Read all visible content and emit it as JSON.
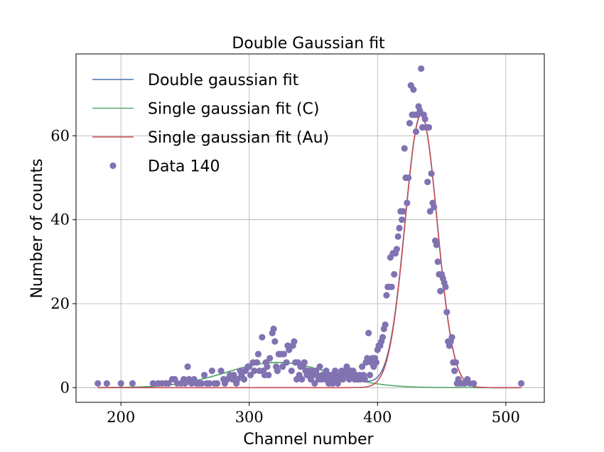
{
  "chart_data": {
    "type": "scatter",
    "title": "Double Gaussian fit",
    "xlabel": "Channel number",
    "ylabel": "Number of counts",
    "xlim": [
      165,
      530
    ],
    "ylim": [
      -3.5,
      79.5
    ],
    "xticks": [
      200,
      300,
      400,
      500
    ],
    "yticks": [
      0,
      20,
      40,
      60
    ],
    "grid": true,
    "legend_position": "top-left",
    "colors": {
      "double": "#4c72b0",
      "carbon": "#55a868",
      "gold": "#c44e52",
      "data": "#8172b2"
    },
    "fits": {
      "carbon": {
        "amplitude": 6,
        "mean": 322,
        "sigma": 40
      },
      "gold": {
        "amplitude": 65,
        "mean": 434,
        "sigma": 12.5
      },
      "x_range": [
        182,
        512
      ]
    },
    "series": [
      {
        "name": "Double gaussian fit",
        "kind": "line",
        "key": "double"
      },
      {
        "name": "Single gaussian fit (C)",
        "kind": "line",
        "key": "carbon"
      },
      {
        "name": "Single gaussian fit (Au)",
        "kind": "line",
        "key": "gold"
      },
      {
        "name": "Data 140",
        "kind": "scatter",
        "key": "data",
        "points": [
          [
            182,
            1
          ],
          [
            189,
            1
          ],
          [
            200,
            1
          ],
          [
            209,
            1
          ],
          [
            225,
            1
          ],
          [
            229,
            1
          ],
          [
            232,
            1
          ],
          [
            235,
            1
          ],
          [
            237,
            1
          ],
          [
            240,
            2
          ],
          [
            242,
            2
          ],
          [
            244,
            1
          ],
          [
            247,
            1
          ],
          [
            249,
            2
          ],
          [
            250,
            1
          ],
          [
            252,
            5
          ],
          [
            253,
            2
          ],
          [
            255,
            1
          ],
          [
            257,
            2
          ],
          [
            259,
            1
          ],
          [
            261,
            1
          ],
          [
            263,
            1
          ],
          [
            265,
            3
          ],
          [
            267,
            1
          ],
          [
            269,
            1
          ],
          [
            271,
            4
          ],
          [
            273,
            1
          ],
          [
            275,
            1
          ],
          [
            278,
            4
          ],
          [
            280,
            2
          ],
          [
            281,
            1
          ],
          [
            283,
            2
          ],
          [
            285,
            3
          ],
          [
            287,
            2
          ],
          [
            288,
            3
          ],
          [
            290,
            1
          ],
          [
            291,
            2
          ],
          [
            293,
            4
          ],
          [
            294,
            3
          ],
          [
            296,
            2
          ],
          [
            297,
            4
          ],
          [
            299,
            5
          ],
          [
            300,
            5
          ],
          [
            301,
            3
          ],
          [
            303,
            6
          ],
          [
            304,
            4
          ],
          [
            306,
            6
          ],
          [
            307,
            8
          ],
          [
            308,
            4
          ],
          [
            310,
            12
          ],
          [
            311,
            4
          ],
          [
            312,
            3
          ],
          [
            313,
            6
          ],
          [
            314,
            5
          ],
          [
            315,
            3
          ],
          [
            316,
            7
          ],
          [
            318,
            13
          ],
          [
            319,
            14
          ],
          [
            320,
            11
          ],
          [
            321,
            5
          ],
          [
            322,
            4
          ],
          [
            323,
            8
          ],
          [
            325,
            8
          ],
          [
            326,
            5
          ],
          [
            327,
            8
          ],
          [
            329,
            6
          ],
          [
            330,
            10
          ],
          [
            331,
            9
          ],
          [
            333,
            4
          ],
          [
            334,
            10
          ],
          [
            335,
            11
          ],
          [
            336,
            6
          ],
          [
            337,
            2
          ],
          [
            338,
            6
          ],
          [
            339,
            3
          ],
          [
            340,
            5
          ],
          [
            341,
            2
          ],
          [
            342,
            5
          ],
          [
            343,
            6
          ],
          [
            344,
            4
          ],
          [
            345,
            3
          ],
          [
            346,
            4
          ],
          [
            347,
            3
          ],
          [
            348,
            2
          ],
          [
            349,
            4
          ],
          [
            350,
            3
          ],
          [
            351,
            1
          ],
          [
            352,
            4
          ],
          [
            353,
            3
          ],
          [
            354,
            2
          ],
          [
            355,
            5
          ],
          [
            356,
            2
          ],
          [
            357,
            3
          ],
          [
            358,
            3
          ],
          [
            359,
            2
          ],
          [
            360,
            4
          ],
          [
            361,
            3
          ],
          [
            362,
            1
          ],
          [
            363,
            2
          ],
          [
            364,
            3
          ],
          [
            365,
            1
          ],
          [
            366,
            2
          ],
          [
            367,
            4
          ],
          [
            368,
            3
          ],
          [
            369,
            1
          ],
          [
            370,
            2
          ],
          [
            371,
            3
          ],
          [
            372,
            4
          ],
          [
            373,
            2
          ],
          [
            374,
            3
          ],
          [
            375,
            4
          ],
          [
            376,
            5
          ],
          [
            377,
            3
          ],
          [
            378,
            2
          ],
          [
            379,
            4
          ],
          [
            380,
            3
          ],
          [
            381,
            4
          ],
          [
            382,
            2
          ],
          [
            383,
            3
          ],
          [
            384,
            2
          ],
          [
            385,
            2
          ],
          [
            386,
            3
          ],
          [
            387,
            2
          ],
          [
            388,
            5
          ],
          [
            389,
            3
          ],
          [
            390,
            2
          ],
          [
            391,
            6
          ],
          [
            392,
            7
          ],
          [
            393,
            13
          ],
          [
            394,
            3
          ],
          [
            395,
            6
          ],
          [
            396,
            7
          ],
          [
            397,
            5
          ],
          [
            398,
            7
          ],
          [
            399,
            6
          ],
          [
            400,
            9
          ],
          [
            401,
            10
          ],
          [
            402,
            10
          ],
          [
            403,
            11
          ],
          [
            404,
            12
          ],
          [
            405,
            14
          ],
          [
            406,
            15
          ],
          [
            407,
            22
          ],
          [
            408,
            24
          ],
          [
            409,
            24
          ],
          [
            410,
            31
          ],
          [
            411,
            24
          ],
          [
            412,
            32
          ],
          [
            413,
            27
          ],
          [
            414,
            32
          ],
          [
            415,
            33
          ],
          [
            416,
            36
          ],
          [
            417,
            38
          ],
          [
            418,
            42
          ],
          [
            419,
            40
          ],
          [
            420,
            42
          ],
          [
            421,
            57
          ],
          [
            422,
            50
          ],
          [
            423,
            44
          ],
          [
            424,
            50
          ],
          [
            425,
            63
          ],
          [
            426,
            72
          ],
          [
            427,
            65
          ],
          [
            428,
            71
          ],
          [
            429,
            65
          ],
          [
            430,
            61
          ],
          [
            431,
            65
          ],
          [
            432,
            67
          ],
          [
            433,
            66
          ],
          [
            434,
            76
          ],
          [
            435,
            62
          ],
          [
            436,
            65
          ],
          [
            437,
            64
          ],
          [
            438,
            62
          ],
          [
            439,
            49
          ],
          [
            440,
            62
          ],
          [
            441,
            42
          ],
          [
            442,
            51
          ],
          [
            443,
            44
          ],
          [
            444,
            43
          ],
          [
            445,
            35
          ],
          [
            446,
            34
          ],
          [
            447,
            30
          ],
          [
            448,
            27
          ],
          [
            449,
            23
          ],
          [
            450,
            27
          ],
          [
            451,
            26
          ],
          [
            452,
            25
          ],
          [
            453,
            24
          ],
          [
            454,
            18
          ],
          [
            455,
            11
          ],
          [
            456,
            10
          ],
          [
            457,
            11
          ],
          [
            458,
            12
          ],
          [
            459,
            6
          ],
          [
            460,
            4
          ],
          [
            461,
            6
          ],
          [
            462,
            1
          ],
          [
            463,
            2
          ],
          [
            464,
            1
          ],
          [
            466,
            1
          ],
          [
            468,
            1
          ],
          [
            470,
            2
          ],
          [
            472,
            1
          ],
          [
            475,
            1
          ],
          [
            512,
            1
          ]
        ]
      }
    ]
  }
}
